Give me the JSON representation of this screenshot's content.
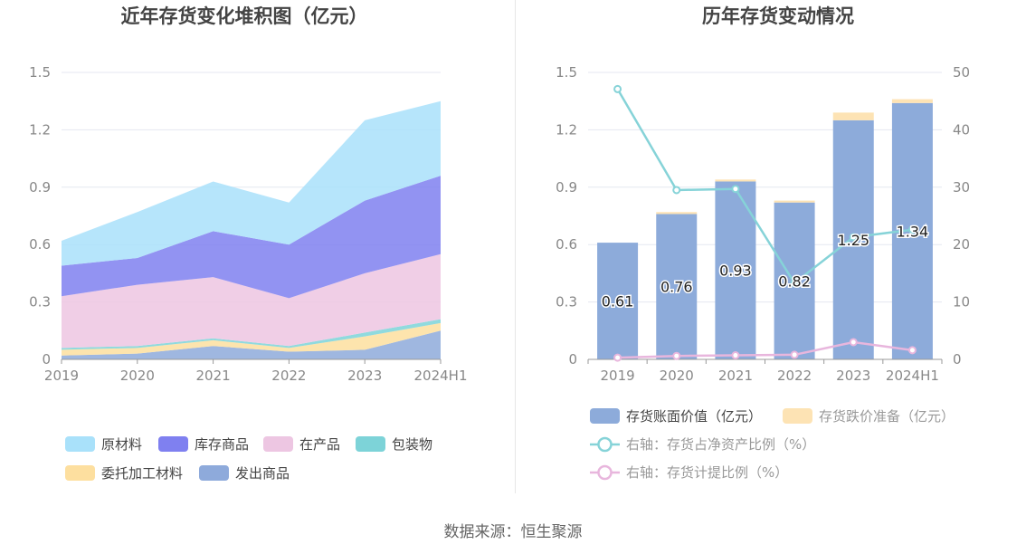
{
  "source_label": "数据来源：恒生聚源",
  "chart_data": [
    {
      "type": "area",
      "title": "近年存货变化堆积图（亿元）",
      "categories": [
        "2019",
        "2020",
        "2021",
        "2022",
        "2023",
        "2024H1"
      ],
      "ylim": [
        0,
        1.5
      ],
      "yticks": [
        "0",
        "0.3",
        "0.6",
        "0.9",
        "1.2",
        "1.5"
      ],
      "grid": true,
      "legend_position": "bottom",
      "series": [
        {
          "name": "发出商品",
          "color": "#8eaadb",
          "values": [
            0.02,
            0.03,
            0.07,
            0.04,
            0.05,
            0.15
          ]
        },
        {
          "name": "委托加工材料",
          "color": "#fddf9f",
          "values": [
            0.03,
            0.03,
            0.03,
            0.02,
            0.07,
            0.04
          ]
        },
        {
          "name": "包装物",
          "color": "#7dd3d8",
          "values": [
            0.01,
            0.01,
            0.01,
            0.01,
            0.02,
            0.02
          ]
        },
        {
          "name": "在产品",
          "color": "#edc6e2",
          "values": [
            0.27,
            0.32,
            0.32,
            0.25,
            0.31,
            0.34
          ]
        },
        {
          "name": "库存商品",
          "color": "#7f80f0",
          "values": [
            0.16,
            0.14,
            0.24,
            0.28,
            0.38,
            0.41
          ]
        },
        {
          "name": "原材料",
          "color": "#a9e1fa",
          "values": [
            0.13,
            0.24,
            0.26,
            0.22,
            0.42,
            0.39
          ]
        }
      ],
      "legend_order": [
        "原材料",
        "库存商品",
        "在产品",
        "包装物",
        "委托加工材料",
        "发出商品"
      ]
    },
    {
      "type": "bar",
      "title": "历年存货变动情况",
      "categories": [
        "2019",
        "2020",
        "2021",
        "2022",
        "2023",
        "2024H1"
      ],
      "ylim": [
        0,
        1.5
      ],
      "yticks": [
        "0",
        "0.3",
        "0.6",
        "0.9",
        "1.2",
        "1.5"
      ],
      "y2lim": [
        0,
        50
      ],
      "y2ticks": [
        "0",
        "10",
        "20",
        "30",
        "40",
        "50"
      ],
      "grid": true,
      "legend_position": "bottom",
      "series": [
        {
          "name": "存货账面价值（亿元）",
          "kind": "bar",
          "axis": "left",
          "color": "#8dabda",
          "values": [
            0.61,
            0.76,
            0.93,
            0.82,
            1.25,
            1.34
          ],
          "labels": [
            "0.61",
            "0.76",
            "0.93",
            "0.82",
            "1.25",
            "1.34"
          ]
        },
        {
          "name": "存货跌价准备（亿元）",
          "kind": "bar",
          "axis": "left",
          "color": "#fde3b4",
          "values": [
            0.0,
            0.01,
            0.01,
            0.01,
            0.04,
            0.02
          ]
        },
        {
          "name": "右轴：存货占净资产比例（%）",
          "kind": "line",
          "axis": "right",
          "color": "#86d3d8",
          "values": [
            47.1,
            29.5,
            29.7,
            13.3,
            21.3,
            22.6
          ]
        },
        {
          "name": "右轴：存货计提比例（%）",
          "kind": "line",
          "axis": "right",
          "color": "#e8b6dd",
          "values": [
            0.3,
            0.6,
            0.7,
            0.8,
            3.0,
            1.6
          ]
        }
      ]
    }
  ]
}
